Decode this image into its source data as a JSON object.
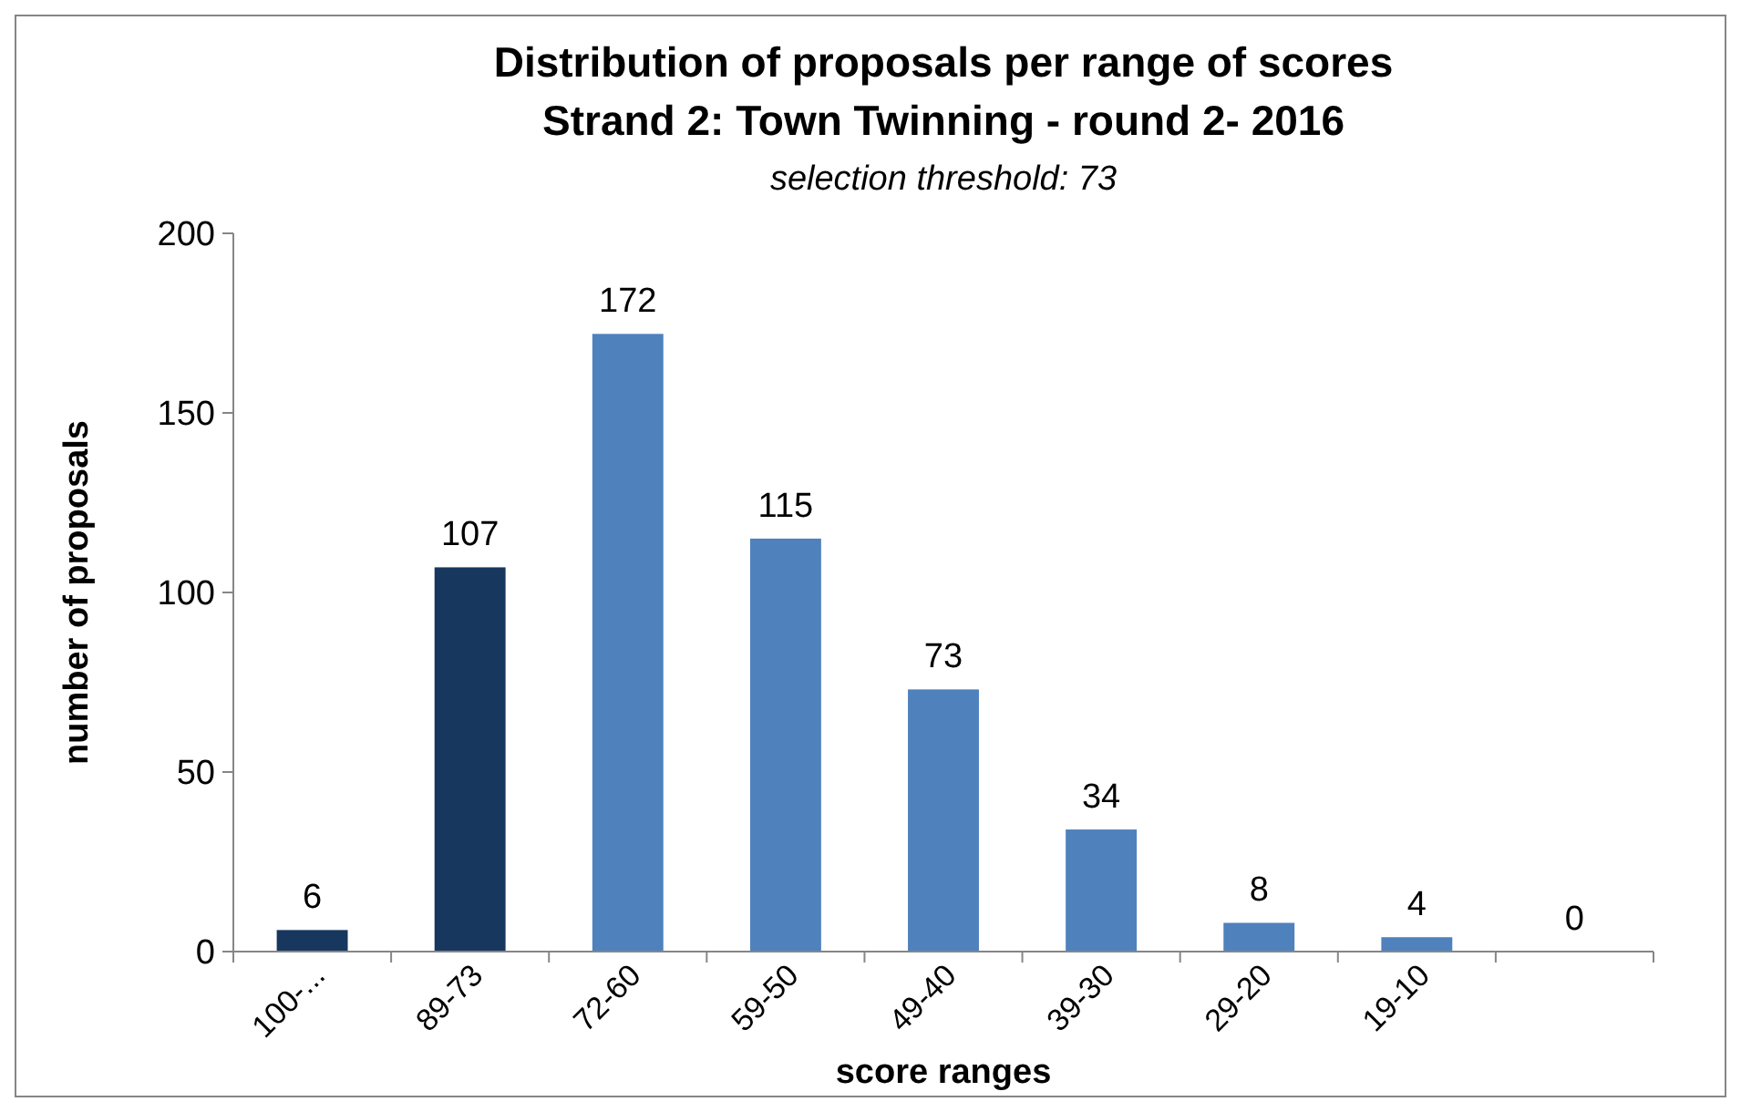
{
  "chart_data": {
    "type": "bar",
    "title": "Distribution of proposals per range of scores",
    "subtitle": "Strand 2: Town Twinning - round 2- 2016",
    "annotations": [
      "selection threshold: 73"
    ],
    "xlabel": "score ranges",
    "ylabel": "number of proposals",
    "categories": [
      "100-...",
      "89-73",
      "72-60",
      "59-50",
      "49-40",
      "39-30",
      "29-20",
      "19-10",
      null
    ],
    "values": [
      6,
      107,
      172,
      115,
      73,
      34,
      8,
      4,
      0
    ],
    "colors": [
      "#17375e",
      "#17375e",
      "#4f81bd",
      "#4f81bd",
      "#4f81bd",
      "#4f81bd",
      "#4f81bd",
      "#4f81bd",
      "#4f81bd"
    ],
    "ylim": [
      0,
      200
    ],
    "yticks": [
      0,
      50,
      100,
      150,
      200
    ],
    "data_labels": true
  }
}
